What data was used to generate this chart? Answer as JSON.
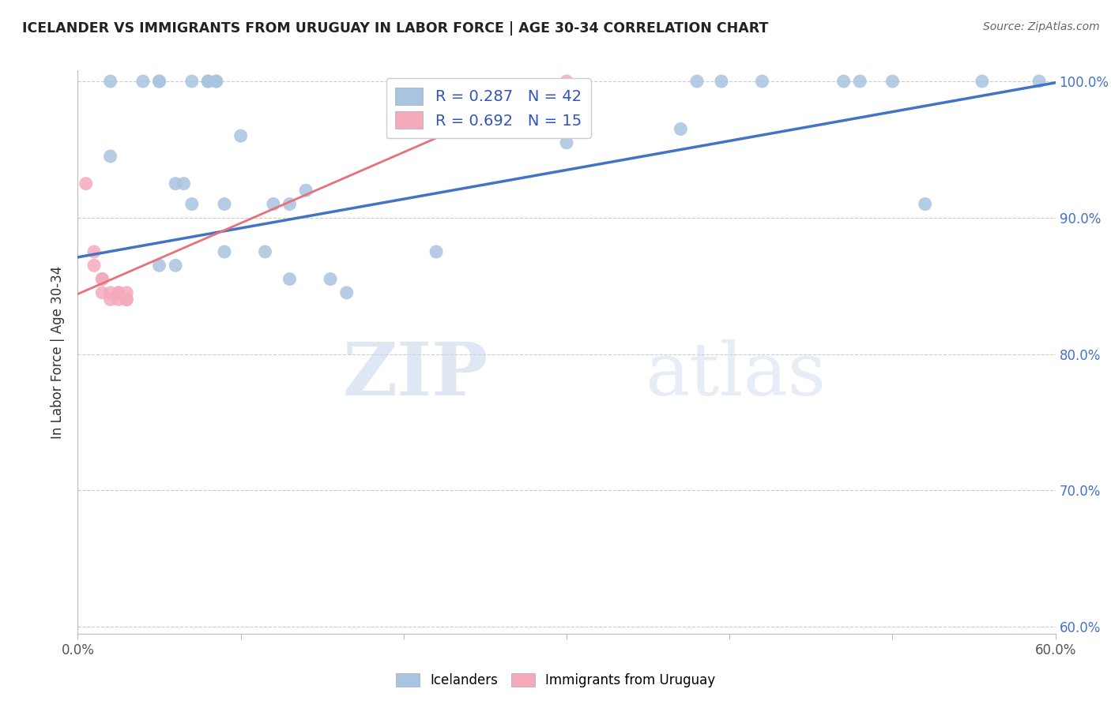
{
  "title": "ICELANDER VS IMMIGRANTS FROM URUGUAY IN LABOR FORCE | AGE 30-34 CORRELATION CHART",
  "source": "Source: ZipAtlas.com",
  "ylabel": "In Labor Force | Age 30-34",
  "xlim": [
    0.0,
    0.6
  ],
  "ylim": [
    0.595,
    1.008
  ],
  "yticks": [
    0.6,
    0.7,
    0.8,
    0.9,
    1.0
  ],
  "ytick_labels": [
    "60.0%",
    "70.0%",
    "80.0%",
    "90.0%",
    "100.0%"
  ],
  "xtick_positions": [
    0.0,
    0.1,
    0.2,
    0.3,
    0.4,
    0.5,
    0.6
  ],
  "xtick_labels_visible": [
    "0.0%",
    "",
    "",
    "",
    "",
    "",
    "60.0%"
  ],
  "blue_R": 0.287,
  "blue_N": 42,
  "pink_R": 0.692,
  "pink_N": 15,
  "blue_color": "#A8C4E0",
  "pink_color": "#F4AABB",
  "blue_line_color": "#4472C4",
  "pink_line_color": "#E8707A",
  "watermark_zip": "ZIP",
  "watermark_atlas": "atlas",
  "blue_scatter_x": [
    0.02,
    0.04,
    0.05,
    0.05,
    0.07,
    0.08,
    0.08,
    0.085,
    0.085,
    0.02,
    0.06,
    0.065,
    0.07,
    0.09,
    0.1,
    0.12,
    0.13,
    0.14,
    0.05,
    0.06,
    0.09,
    0.115,
    0.13,
    0.155,
    0.165,
    0.22,
    0.3,
    0.37,
    0.38,
    0.395,
    0.42,
    0.47,
    0.48,
    0.5,
    0.52,
    0.555,
    0.59
  ],
  "blue_scatter_y": [
    1.0,
    1.0,
    1.0,
    1.0,
    1.0,
    1.0,
    1.0,
    1.0,
    1.0,
    0.945,
    0.925,
    0.925,
    0.91,
    0.91,
    0.96,
    0.91,
    0.91,
    0.92,
    0.865,
    0.865,
    0.875,
    0.875,
    0.855,
    0.855,
    0.845,
    0.875,
    0.955,
    0.965,
    1.0,
    1.0,
    1.0,
    1.0,
    1.0,
    1.0,
    0.91,
    1.0,
    1.0
  ],
  "pink_scatter_x": [
    0.005,
    0.01,
    0.01,
    0.015,
    0.015,
    0.015,
    0.02,
    0.02,
    0.025,
    0.025,
    0.025,
    0.03,
    0.03,
    0.03,
    0.3
  ],
  "pink_scatter_y": [
    0.925,
    0.865,
    0.875,
    0.855,
    0.855,
    0.845,
    0.845,
    0.84,
    0.845,
    0.845,
    0.84,
    0.84,
    0.845,
    0.84,
    1.0
  ],
  "blue_line_x": [
    0.0,
    0.6
  ],
  "blue_line_y": [
    0.871,
    0.999
  ],
  "pink_line_x": [
    0.0,
    0.3
  ],
  "pink_line_y": [
    0.844,
    1.0
  ],
  "legend_blue_text": "R = 0.287   N = 42",
  "legend_pink_text": "R = 0.692   N = 15",
  "bottom_legend_labels": [
    "Icelanders",
    "Immigrants from Uruguay"
  ]
}
